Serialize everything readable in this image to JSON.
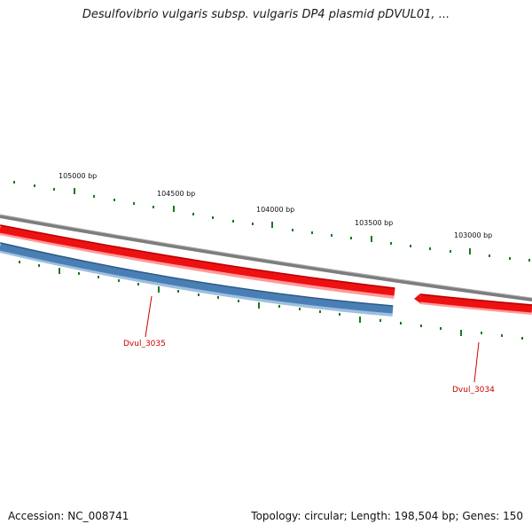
{
  "header": {
    "title": "Desulfovibrio vulgaris subsp. vulgaris DP4 plasmid pDVUL01, ..."
  },
  "footer": {
    "accession": "Accession: NC_008741",
    "summary": "Topology: circular; Length: 198,504 bp; Genes: 150"
  },
  "map": {
    "tick_labels": [
      "105000 bp",
      "104500 bp",
      "104000 bp",
      "103500 bp",
      "103000 bp"
    ],
    "genes": [
      {
        "name": "Dvul_3035",
        "strand": "minus",
        "color": "#4a7fb5"
      },
      {
        "name": "Dvul_3034",
        "strand": "plus",
        "color": "#ee1111"
      }
    ],
    "colors": {
      "backbone": "#808080",
      "plus_strand": "#ee1111",
      "minus_strand": "#4a7fb5",
      "tick": "#1a7a1a",
      "label": "#cc0000"
    }
  }
}
